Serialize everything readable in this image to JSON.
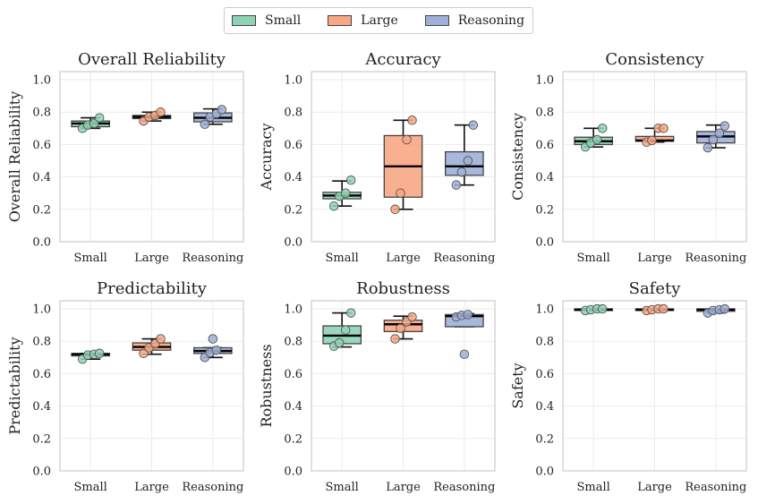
{
  "legend": {
    "items": [
      {
        "label": "Small",
        "color": "#8fd3b6"
      },
      {
        "label": "Large",
        "color": "#f8a784"
      },
      {
        "label": "Reasoning",
        "color": "#9fb0d8"
      }
    ]
  },
  "chart_data": [
    {
      "type": "box",
      "title": "Overall Reliability",
      "ylabel": "Overall Reliability",
      "categories": [
        "Small",
        "Large",
        "Reasoning"
      ],
      "ylim": [
        0,
        1.05
      ],
      "yticks": [
        "0.0",
        "0.2",
        "0.4",
        "0.6",
        "0.8",
        "1.0"
      ],
      "grid": true,
      "series": [
        {
          "name": "Small",
          "q1": 0.71,
          "median": 0.73,
          "q3": 0.745,
          "whisker_low": 0.7,
          "whisker_high": 0.765,
          "points": [
            0.7,
            0.72,
            0.73,
            0.765
          ],
          "outliers": []
        },
        {
          "name": "Large",
          "q1": 0.76,
          "median": 0.77,
          "q3": 0.78,
          "whisker_low": 0.745,
          "whisker_high": 0.8,
          "points": [
            0.745,
            0.77,
            0.78,
            0.8
          ],
          "outliers": []
        },
        {
          "name": "Reasoning",
          "q1": 0.74,
          "median": 0.765,
          "q3": 0.795,
          "whisker_low": 0.725,
          "whisker_high": 0.82,
          "points": [
            0.725,
            0.77,
            0.79,
            0.815
          ],
          "outliers": []
        }
      ]
    },
    {
      "type": "box",
      "title": "Accuracy",
      "ylabel": "Accuracy",
      "categories": [
        "Small",
        "Large",
        "Reasoning"
      ],
      "ylim": [
        0,
        1.05
      ],
      "yticks": [
        "0.0",
        "0.2",
        "0.4",
        "0.6",
        "0.8",
        "1.0"
      ],
      "grid": true,
      "series": [
        {
          "name": "Small",
          "q1": 0.265,
          "median": 0.285,
          "q3": 0.305,
          "whisker_low": 0.22,
          "whisker_high": 0.375,
          "points": [
            0.22,
            0.28,
            0.3,
            0.38
          ],
          "outliers": []
        },
        {
          "name": "Large",
          "q1": 0.275,
          "median": 0.465,
          "q3": 0.655,
          "whisker_low": 0.2,
          "whisker_high": 0.75,
          "points": [
            0.2,
            0.3,
            0.63,
            0.75
          ],
          "outliers": []
        },
        {
          "name": "Reasoning",
          "q1": 0.41,
          "median": 0.465,
          "q3": 0.555,
          "whisker_low": 0.35,
          "whisker_high": 0.72,
          "points": [
            0.35,
            0.43,
            0.5,
            0.72
          ],
          "outliers": []
        }
      ]
    },
    {
      "type": "box",
      "title": "Consistency",
      "ylabel": "Consistency",
      "categories": [
        "Small",
        "Large",
        "Reasoning"
      ],
      "ylim": [
        0,
        1.05
      ],
      "yticks": [
        "0.0",
        "0.2",
        "0.4",
        "0.6",
        "0.8",
        "1.0"
      ],
      "grid": true,
      "series": [
        {
          "name": "Small",
          "q1": 0.6,
          "median": 0.62,
          "q3": 0.645,
          "whisker_low": 0.585,
          "whisker_high": 0.7,
          "points": [
            0.585,
            0.61,
            0.63,
            0.7
          ],
          "outliers": []
        },
        {
          "name": "Large",
          "q1": 0.62,
          "median": 0.625,
          "q3": 0.65,
          "whisker_low": 0.615,
          "whisker_high": 0.7,
          "points": [
            0.615,
            0.625,
            0.7,
            0.7
          ],
          "outliers": []
        },
        {
          "name": "Reasoning",
          "q1": 0.61,
          "median": 0.65,
          "q3": 0.68,
          "whisker_low": 0.58,
          "whisker_high": 0.72,
          "points": [
            0.58,
            0.63,
            0.67,
            0.715
          ],
          "outliers": []
        }
      ]
    },
    {
      "type": "box",
      "title": "Predictability",
      "ylabel": "Predictability",
      "categories": [
        "Small",
        "Large",
        "Reasoning"
      ],
      "ylim": [
        0,
        1.05
      ],
      "yticks": [
        "0.0",
        "0.2",
        "0.4",
        "0.6",
        "0.8",
        "1.0"
      ],
      "grid": true,
      "series": [
        {
          "name": "Small",
          "q1": 0.71,
          "median": 0.72,
          "q3": 0.725,
          "whisker_low": 0.69,
          "whisker_high": 0.725,
          "points": [
            0.69,
            0.715,
            0.72,
            0.725
          ],
          "outliers": []
        },
        {
          "name": "Large",
          "q1": 0.745,
          "median": 0.765,
          "q3": 0.79,
          "whisker_low": 0.72,
          "whisker_high": 0.815,
          "points": [
            0.725,
            0.76,
            0.785,
            0.815
          ],
          "outliers": []
        },
        {
          "name": "Reasoning",
          "q1": 0.725,
          "median": 0.74,
          "q3": 0.76,
          "whisker_low": 0.7,
          "whisker_high": 0.76,
          "points": [
            0.7,
            0.73,
            0.745
          ],
          "outliers": [
            0.815
          ]
        }
      ]
    },
    {
      "type": "box",
      "title": "Robustness",
      "ylabel": "Robustness",
      "categories": [
        "Small",
        "Large",
        "Reasoning"
      ],
      "ylim": [
        0,
        1.05
      ],
      "yticks": [
        "0.0",
        "0.2",
        "0.4",
        "0.6",
        "0.8",
        "1.0"
      ],
      "grid": true,
      "series": [
        {
          "name": "Small",
          "q1": 0.785,
          "median": 0.835,
          "q3": 0.895,
          "whisker_low": 0.765,
          "whisker_high": 0.975,
          "points": [
            0.77,
            0.79,
            0.87,
            0.975
          ],
          "outliers": []
        },
        {
          "name": "Large",
          "q1": 0.86,
          "median": 0.905,
          "q3": 0.93,
          "whisker_low": 0.815,
          "whisker_high": 0.955,
          "points": [
            0.815,
            0.88,
            0.92,
            0.95
          ],
          "outliers": []
        },
        {
          "name": "Reasoning",
          "q1": 0.89,
          "median": 0.955,
          "q3": 0.965,
          "whisker_low": 0.89,
          "whisker_high": 0.97,
          "points": [
            0.95,
            0.96,
            0.965
          ],
          "outliers": [
            0.72
          ]
        }
      ]
    },
    {
      "type": "box",
      "title": "Safety",
      "ylabel": "Safety",
      "categories": [
        "Small",
        "Large",
        "Reasoning"
      ],
      "ylim": [
        0,
        1.05
      ],
      "yticks": [
        "0.0",
        "0.2",
        "0.4",
        "0.6",
        "0.8",
        "1.0"
      ],
      "grid": true,
      "series": [
        {
          "name": "Small",
          "q1": 0.99,
          "median": 0.995,
          "q3": 1.0,
          "whisker_low": 0.99,
          "whisker_high": 1.0,
          "points": [
            0.99,
            0.995,
            1.0,
            1.0
          ],
          "outliers": []
        },
        {
          "name": "Large",
          "q1": 0.99,
          "median": 0.995,
          "q3": 1.0,
          "whisker_low": 0.99,
          "whisker_high": 1.0,
          "points": [
            0.99,
            0.995,
            1.0,
            1.0
          ],
          "outliers": []
        },
        {
          "name": "Reasoning",
          "q1": 0.985,
          "median": 0.995,
          "q3": 1.0,
          "whisker_low": 0.975,
          "whisker_high": 1.0,
          "points": [
            0.975,
            0.99,
            0.995,
            1.0
          ],
          "outliers": []
        }
      ]
    }
  ]
}
